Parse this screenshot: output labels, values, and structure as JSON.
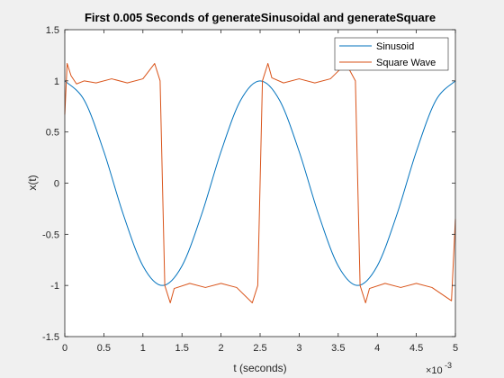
{
  "chart_data": {
    "type": "line",
    "title": "First 0.005 Seconds of generateSinusoidal and generateSquare",
    "xlabel": "t (seconds)",
    "ylabel": "x(t)",
    "x_exponent_label": "×10",
    "x_exponent_power": "-3",
    "xlim": [
      0,
      0.005
    ],
    "ylim": [
      -1.5,
      1.5
    ],
    "grid": false,
    "legend_position": "top-right",
    "x_ticks": [
      0,
      0.0005,
      0.001,
      0.0015,
      0.002,
      0.0025,
      0.003,
      0.0035,
      0.004,
      0.0045,
      0.005
    ],
    "x_tick_labels": [
      "0",
      "0.5",
      "1",
      "1.5",
      "2",
      "2.5",
      "3",
      "3.5",
      "4",
      "4.5",
      "5"
    ],
    "y_ticks": [
      -1.5,
      -1,
      -0.5,
      0,
      0.5,
      1,
      1.5
    ],
    "y_tick_labels": [
      "-1.5",
      "-1",
      "-0.5",
      "0",
      "0.5",
      "1",
      "1.5"
    ],
    "series": [
      {
        "name": "Sinusoid",
        "color": "#0072BD",
        "x": [
          0,
          0.00025,
          0.0005,
          0.00075,
          0.001,
          0.00125,
          0.0015,
          0.00175,
          0.002,
          0.00225,
          0.0025,
          0.00275,
          0.003,
          0.00325,
          0.0035,
          0.00375,
          0.004,
          0.00425,
          0.0045,
          0.00475,
          0.005
        ],
        "values": [
          1.0,
          0.809,
          0.309,
          -0.309,
          -0.809,
          -1.0,
          -0.809,
          -0.309,
          0.309,
          0.809,
          1.0,
          0.809,
          0.309,
          -0.309,
          -0.809,
          -1.0,
          -0.809,
          -0.309,
          0.309,
          0.809,
          1.0
        ]
      },
      {
        "name": "Square Wave",
        "color": "#D95319",
        "x": [
          0,
          3e-05,
          8e-05,
          0.00015,
          0.00025,
          0.0004,
          0.0006,
          0.0008,
          0.001,
          0.00115,
          0.00122,
          0.00125,
          0.00128,
          0.00135,
          0.0014,
          0.0016,
          0.0018,
          0.002,
          0.0022,
          0.0024,
          0.00247,
          0.0025,
          0.00253,
          0.0026,
          0.00265,
          0.0028,
          0.003,
          0.0032,
          0.0034,
          0.0036,
          0.00372,
          0.00375,
          0.00378,
          0.00385,
          0.0039,
          0.0041,
          0.0043,
          0.0045,
          0.0047,
          0.00495,
          0.005
        ],
        "values": [
          0.67,
          1.17,
          1.05,
          0.97,
          1.0,
          0.98,
          1.02,
          0.98,
          1.02,
          1.17,
          1.0,
          0.0,
          -1.0,
          -1.17,
          -1.03,
          -0.98,
          -1.02,
          -0.98,
          -1.02,
          -1.17,
          -1.0,
          0.0,
          1.0,
          1.17,
          1.03,
          0.98,
          1.02,
          0.98,
          1.02,
          1.17,
          1.0,
          0.0,
          -1.0,
          -1.17,
          -1.03,
          -0.98,
          -1.02,
          -0.98,
          -1.02,
          -1.15,
          -0.35
        ]
      }
    ]
  }
}
